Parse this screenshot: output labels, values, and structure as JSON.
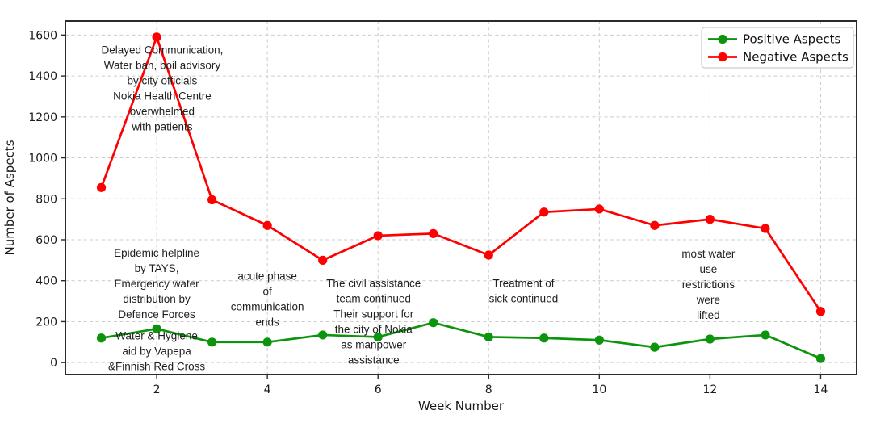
{
  "chart_data": {
    "type": "line",
    "title": "",
    "xlabel": "Week Number",
    "ylabel": "Number of Aspects",
    "x": [
      1,
      2,
      3,
      4,
      5,
      6,
      7,
      8,
      9,
      10,
      11,
      12,
      13,
      14
    ],
    "series": [
      {
        "name": "Positive Aspects",
        "color": "#0d940d",
        "values": [
          120,
          165,
          100,
          100,
          135,
          125,
          195,
          125,
          120,
          110,
          75,
          115,
          135,
          20
        ]
      },
      {
        "name": "Negative Aspects",
        "color": "#fe0000",
        "values": [
          855,
          1590,
          795,
          670,
          500,
          620,
          630,
          525,
          735,
          750,
          670,
          700,
          655,
          250
        ]
      }
    ],
    "xlim": [
      0.35,
      14.65
    ],
    "ylim": [
      -58.5,
      1668.5
    ],
    "x_ticks": [
      2,
      4,
      6,
      8,
      10,
      12,
      14
    ],
    "y_ticks": [
      0,
      200,
      400,
      600,
      800,
      1000,
      1200,
      1400,
      1600
    ],
    "grid": true,
    "grid_style": "dashed",
    "legend_position": "upper-right",
    "annotations": [
      {
        "x": 2.1,
        "y": 1340,
        "lines": [
          "Delayed Communication,",
          "Water ban, boil advisory",
          "by city officials",
          "Nokia Health Centre",
          "overwhelmed",
          "with patients"
        ]
      },
      {
        "x": 2.0,
        "y": 385,
        "lines": [
          "Epidemic helpline",
          "by TAYS,",
          "Emergency water",
          "distribution by",
          "Defence Forces"
        ]
      },
      {
        "x": 2.0,
        "y": 55,
        "lines": [
          "Water & Hygiene",
          "aid by Vapepa",
          "&Finnish Red Cross"
        ]
      },
      {
        "x": 4.0,
        "y": 310,
        "lines": [
          "acute phase",
          "of",
          "communication",
          "ends"
        ]
      },
      {
        "x": 5.92,
        "y": 200,
        "lines": [
          "The civil assistance",
          "team continued",
          "Their support for",
          "the city of Nokia",
          "as manpower",
          "assistance"
        ]
      },
      {
        "x": 8.63,
        "y": 350,
        "lines": [
          "Treatment of",
          "sick continued"
        ]
      },
      {
        "x": 11.97,
        "y": 382,
        "lines": [
          "most water",
          "use",
          "restrictions",
          "were",
          "lifted"
        ]
      }
    ],
    "colors": {
      "grid": "#cccccc",
      "spine": "#2b2b2b",
      "text": "#1a1a1a",
      "background": "#ffffff",
      "legend_border": "#cccccc"
    }
  }
}
